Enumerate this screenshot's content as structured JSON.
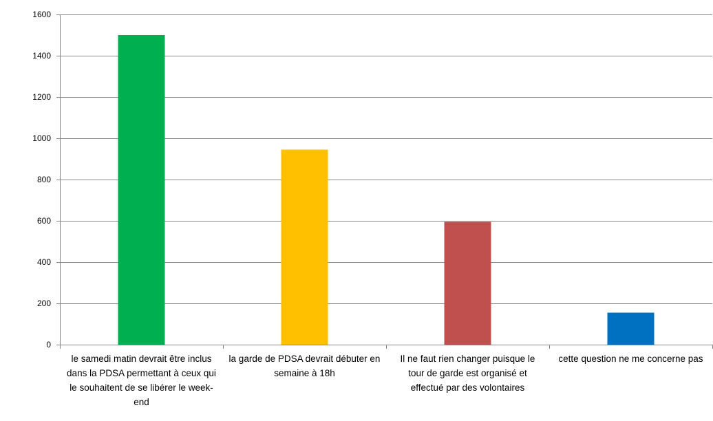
{
  "chart_data": {
    "type": "bar",
    "title": "",
    "xlabel": "",
    "ylabel": "",
    "ylim": [
      0,
      1600
    ],
    "yticks": [
      0,
      200,
      400,
      600,
      800,
      1000,
      1200,
      1400,
      1600
    ],
    "grid": true,
    "legend": "none",
    "categories": [
      "le samedi matin devrait être inclus\ndans la PDSA permettant à  ceux qui\nle souhaitent de se libérer le week-\nend",
      "la garde de PDSA devrait débuter en\nsemaine à 18h",
      "Il ne faut rien changer puisque le\ntour de garde est organisé et\neffectué par des volontaires",
      "cette question ne me concerne pas"
    ],
    "values": [
      1500,
      945,
      595,
      155
    ],
    "colors": [
      "#00b050",
      "#ffc000",
      "#c0504d",
      "#0070c0"
    ]
  }
}
